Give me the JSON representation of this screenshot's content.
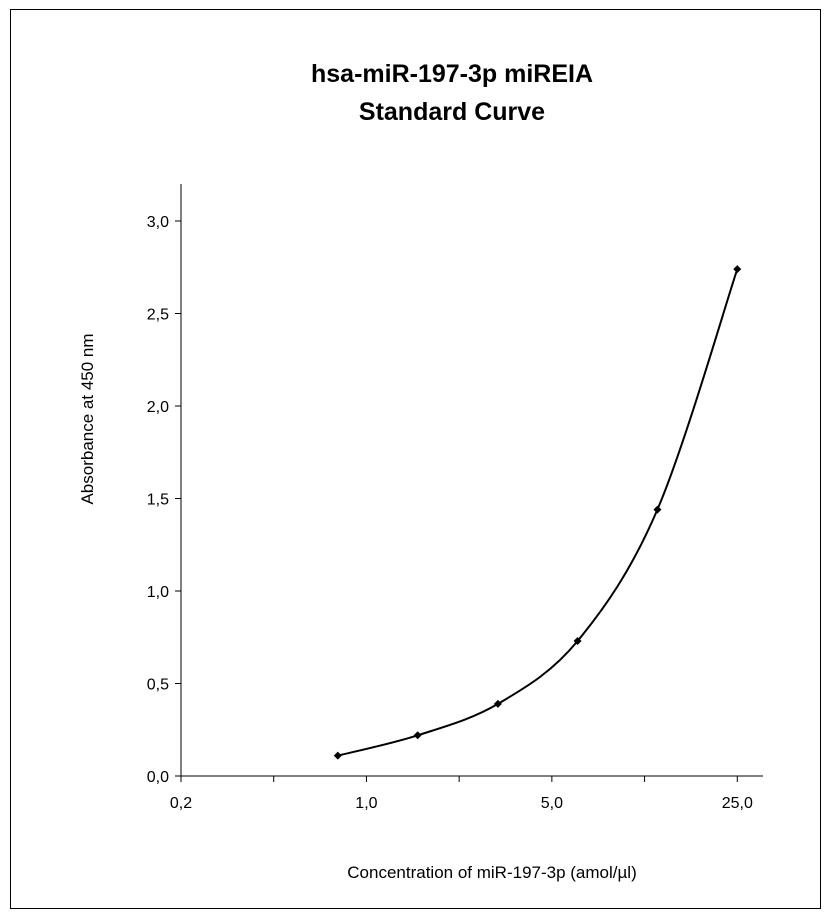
{
  "chart_data": {
    "type": "scatter",
    "title": "hsa-miR-197-3p miREIA",
    "subtitle": "Standard Curve",
    "xlabel": "Concentration of miR-197-3p (amol/µl)",
    "ylabel": "Absorbance at 450 nm",
    "x_scale": "log",
    "xlim": [
      0.2,
      31.25
    ],
    "ylim": [
      0,
      3.2
    ],
    "x_ticks": [
      0.2,
      1.0,
      5.0,
      25.0
    ],
    "x_tick_labels": [
      "0,2",
      "1,0",
      "5,0",
      "25,0"
    ],
    "y_ticks": [
      0,
      0.5,
      1.0,
      1.5,
      2.0,
      2.5,
      3.0
    ],
    "y_tick_labels": [
      "0,0",
      "0,5",
      "1,0",
      "1,5",
      "2,0",
      "2,5",
      "3,0"
    ],
    "grid": false,
    "legend": "none",
    "series": [
      {
        "x": [
          0.78,
          1.56,
          3.13,
          6.25,
          12.5,
          25.0
        ],
        "y": [
          0.11,
          0.22,
          0.39,
          0.73,
          1.44,
          2.74
        ],
        "color": "#000000",
        "marker": "diamond",
        "smooth_line": true
      }
    ]
  }
}
